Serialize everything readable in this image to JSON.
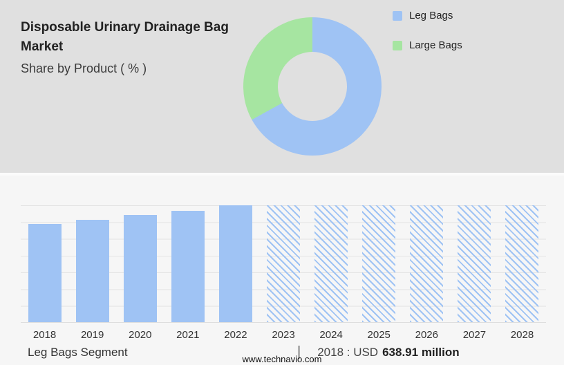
{
  "header": {
    "title": "Disposable Urinary Drainage Bag Market",
    "subtitle": "Share by Product ( % )"
  },
  "legend": [
    {
      "label": "Leg Bags",
      "color": "#9fc3f4"
    },
    {
      "label": "Large Bags",
      "color": "#a6e5a1"
    }
  ],
  "chart_data": [
    {
      "type": "pie",
      "subtype": "donut",
      "title": "Share by Product ( % )",
      "labels": [
        "Leg Bags",
        "Large Bags"
      ],
      "values": [
        67,
        33
      ],
      "colors": [
        "#9fc3f4",
        "#a6e5a1"
      ],
      "legend_position": "right"
    },
    {
      "type": "bar",
      "categories": [
        "2018",
        "2019",
        "2020",
        "2021",
        "2022",
        "2023",
        "2024",
        "2025",
        "2026",
        "2027",
        "2028"
      ],
      "values": [
        638.91,
        665,
        695,
        720,
        758,
        758,
        758,
        758,
        758,
        758,
        758
      ],
      "forecast_categories": [
        "2023",
        "2024",
        "2025",
        "2026",
        "2027",
        "2028"
      ],
      "bar_color": "#9fc3f4",
      "forecast_style": "diagonal-hatch",
      "ylabel": "",
      "xlabel": "",
      "ylim": [
        0,
        758
      ],
      "grid": true
    }
  ],
  "footer": {
    "segment_label": "Leg Bags Segment",
    "divider": "|",
    "stat_prefix": "2018 : USD",
    "stat_value": "638.91 million",
    "site": "www.technavio.com"
  }
}
